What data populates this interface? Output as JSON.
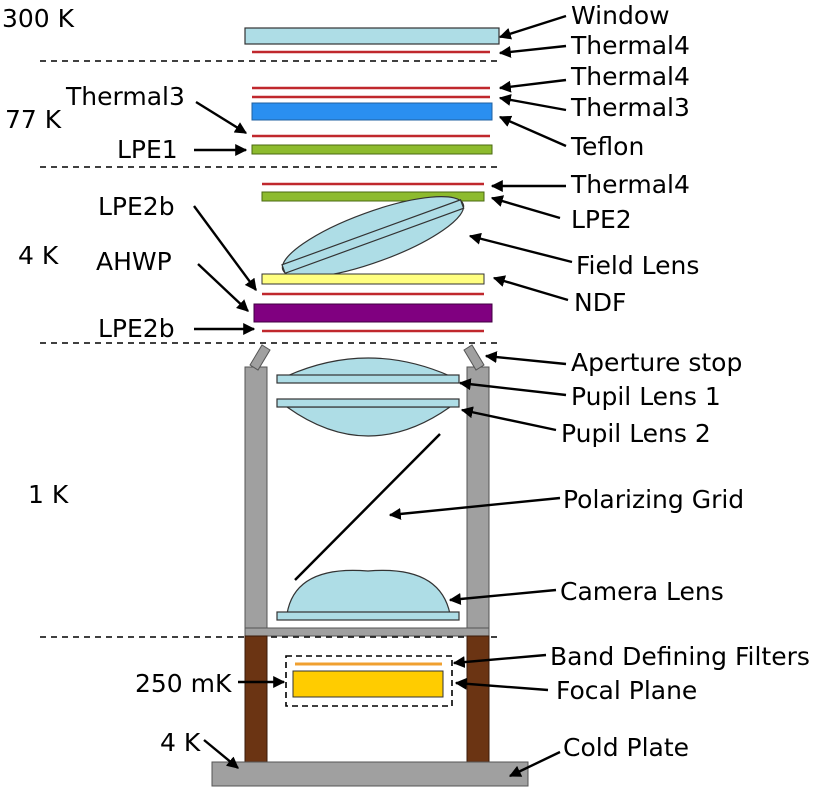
{
  "temperatures": {
    "t300k": "300 K",
    "t77k": "77 K",
    "t4k": "4 K",
    "t1k": "1 K",
    "t250mk": "250 mK",
    "t4k_bottom": "4 K"
  },
  "labels": {
    "window": "Window",
    "thermal4_a": "Thermal4",
    "thermal4_b": "Thermal4",
    "thermal3_right": "Thermal3",
    "teflon": "Teflon",
    "thermal3_left": "Thermal3",
    "lpe1": "LPE1",
    "thermal4_c": "Thermal4",
    "lpe2": "LPE2",
    "field_lens": "Field Lens",
    "ndf": "NDF",
    "lpe2b_top": "LPE2b",
    "ahwp": "AHWP",
    "lpe2b_bottom": "LPE2b",
    "aperture_stop": "Aperture stop",
    "pupil_lens_1": "Pupil Lens 1",
    "pupil_lens_2": "Pupil Lens 2",
    "polarizing_grid": "Polarizing Grid",
    "camera_lens": "Camera Lens",
    "band_defining_filters": "Band Defining Filters",
    "focal_plane": "Focal Plane",
    "cold_plate": "Cold Plate"
  },
  "colors": {
    "window": "#aedde6",
    "thermal_filter": "#c0282d",
    "thermal3": "#2a8ff0",
    "lpe": "#8dbb2e",
    "ndf": "#ffff80",
    "ahwp": "#800080",
    "tube_1k": "#a0a0a0",
    "support_4k": "#6b3413",
    "focal_plane": "#ffcc00",
    "band_filter": "#f0a030",
    "cold_plate": "#a0a0a0"
  }
}
